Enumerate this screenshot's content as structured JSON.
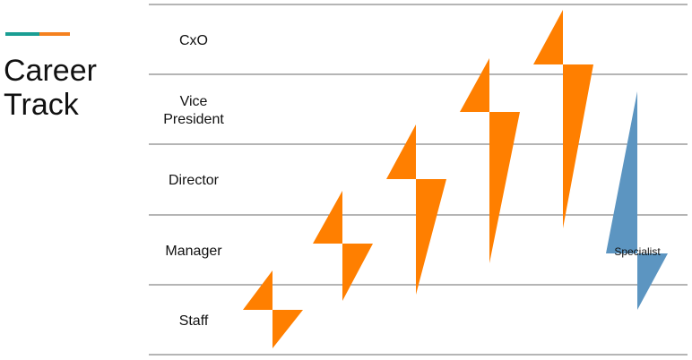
{
  "title_lines": [
    "Career",
    "Track"
  ],
  "colors": {
    "accent_teal": "#1a9e93",
    "accent_orange": "#f5811f",
    "diamond_orange": "#ff7f00",
    "specialist_blue": "#5c95c1",
    "gridline": "#6b6b6b"
  },
  "levels": [
    {
      "label_lines": [
        "CxO"
      ]
    },
    {
      "label_lines": [
        "Vice",
        "President"
      ]
    },
    {
      "label_lines": [
        "Director"
      ]
    },
    {
      "label_lines": [
        "Manager"
      ]
    },
    {
      "label_lines": [
        "Staff"
      ]
    }
  ],
  "diamond_icon": "orange-diamond-shape",
  "specialist": {
    "label": "Specialist",
    "icon": "blue-diamond-shape"
  }
}
